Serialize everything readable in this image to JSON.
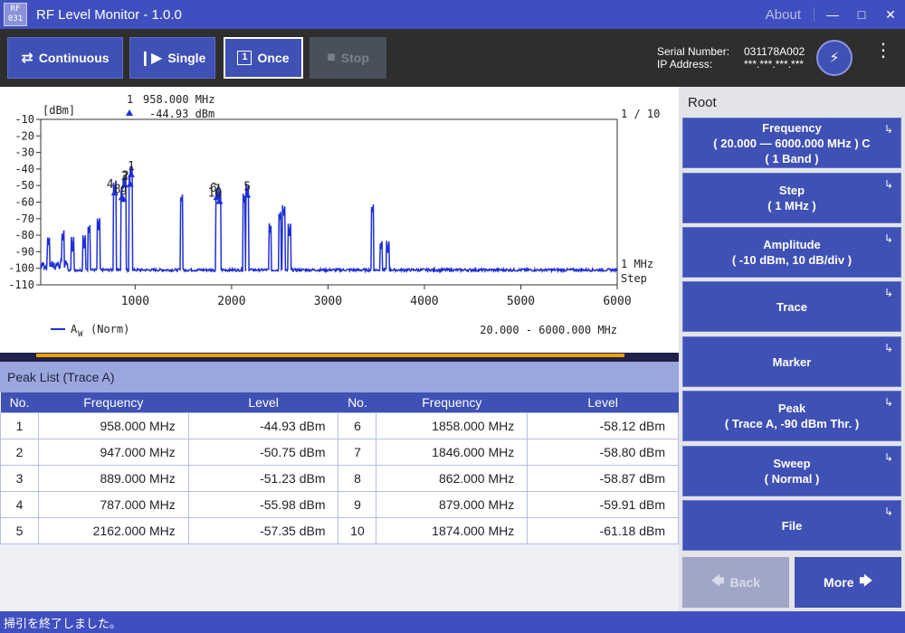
{
  "app": {
    "icon_line1": "RF",
    "icon_line2": "031",
    "title": "RF Level Monitor - 1.0.0",
    "about": "About"
  },
  "toolbar": {
    "continuous": "Continuous",
    "single": "Single",
    "once": "Once",
    "once_icon": "1",
    "stop": "Stop",
    "serial_label": "Serial Number:",
    "serial_value": "031178A002",
    "ip_label": "IP Address:",
    "ip_value": "***.***.***.***"
  },
  "chart": {
    "unit_label": "[dBm]",
    "marker_index": "1",
    "marker_freq": "958.000 MHz",
    "marker_level": "-44.93 dBm",
    "page": "1 / 10",
    "step_value": "1 MHz",
    "step_label": "Step",
    "legend": "(Norm)",
    "legend_sub": "W",
    "legend_main": "A",
    "range": "20.000 - 6000.000 MHz"
  },
  "chart_data": {
    "type": "line",
    "xlim": [
      20,
      6000
    ],
    "ylim": [
      -110,
      -10
    ],
    "xticks": [
      "1000",
      "2000",
      "3000",
      "4000",
      "5000",
      "6000"
    ],
    "yticks": [
      "-10",
      "-20",
      "-30",
      "-40",
      "-50",
      "-60",
      "-70",
      "-80",
      "-90",
      "-100",
      "-110"
    ],
    "series": [
      {
        "name": "A",
        "noise_floor": -101,
        "peaks": [
          {
            "f": 100,
            "level": -88
          },
          {
            "f": 250,
            "level": -85
          },
          {
            "f": 350,
            "level": -90
          },
          {
            "f": 470,
            "level": -88
          },
          {
            "f": 520,
            "level": -80
          },
          {
            "f": 620,
            "level": -78
          },
          {
            "f": 787,
            "level": -55.98
          },
          {
            "f": 862,
            "level": -58.87
          },
          {
            "f": 879,
            "level": -59.91
          },
          {
            "f": 889,
            "level": -51.23
          },
          {
            "f": 947,
            "level": -50.75
          },
          {
            "f": 958,
            "level": -44.93
          },
          {
            "f": 1480,
            "level": -62
          },
          {
            "f": 1846,
            "level": -58.8
          },
          {
            "f": 1858,
            "level": -58.12
          },
          {
            "f": 1874,
            "level": -61.18
          },
          {
            "f": 2130,
            "level": -62
          },
          {
            "f": 2162,
            "level": -57.35
          },
          {
            "f": 2400,
            "level": -80
          },
          {
            "f": 2500,
            "level": -72
          },
          {
            "f": 2540,
            "level": -70
          },
          {
            "f": 2600,
            "level": -82
          },
          {
            "f": 3460,
            "level": -68
          },
          {
            "f": 3550,
            "level": -90
          },
          {
            "f": 3620,
            "level": -92
          }
        ]
      }
    ],
    "markers": [
      {
        "label": "1",
        "f": 958,
        "level": -44.93
      },
      {
        "label": "2",
        "f": 947,
        "level": -50.75
      },
      {
        "label": "3",
        "f": 889,
        "level": -51.23
      },
      {
        "label": "4",
        "f": 787,
        "level": -55.98
      },
      {
        "label": "5",
        "f": 2162,
        "level": -57.35
      },
      {
        "label": "6",
        "f": 1858,
        "level": -58.12
      },
      {
        "label": "7",
        "f": 1846,
        "level": -58.8
      },
      {
        "label": "8",
        "f": 862,
        "level": -58.87
      },
      {
        "label": "9",
        "f": 879,
        "level": -59.91
      },
      {
        "label": "10",
        "f": 1874,
        "level": -61.18
      }
    ]
  },
  "peak_list": {
    "title": "Peak List (Trace A)",
    "headers": [
      "No.",
      "Frequency",
      "Level",
      "No.",
      "Frequency",
      "Level"
    ],
    "rows": [
      [
        "1",
        "958.000 MHz",
        "-44.93 dBm",
        "6",
        "1858.000 MHz",
        "-58.12 dBm"
      ],
      [
        "2",
        "947.000 MHz",
        "-50.75 dBm",
        "7",
        "1846.000 MHz",
        "-58.80 dBm"
      ],
      [
        "3",
        "889.000 MHz",
        "-51.23 dBm",
        "8",
        "862.000 MHz",
        "-58.87 dBm"
      ],
      [
        "4",
        "787.000 MHz",
        "-55.98 dBm",
        "9",
        "879.000 MHz",
        "-59.91 dBm"
      ],
      [
        "5",
        "2162.000 MHz",
        "-57.35 dBm",
        "10",
        "1874.000 MHz",
        "-61.18 dBm"
      ]
    ]
  },
  "menu": {
    "head": "Root",
    "items": [
      {
        "label": "Frequency",
        "sub": "( 20.000 — 6000.000 MHz ) C",
        "sub2": "( 1 Band )"
      },
      {
        "label": "Step",
        "sub": "( 1 MHz )",
        "sub2": ""
      },
      {
        "label": "Amplitude",
        "sub": "( -10 dBm, 10 dB/div )",
        "sub2": ""
      },
      {
        "label": "Trace",
        "sub": "",
        "sub2": ""
      },
      {
        "label": "Marker",
        "sub": "",
        "sub2": ""
      },
      {
        "label": "Peak",
        "sub": "( Trace A, -90 dBm Thr. )",
        "sub2": ""
      },
      {
        "label": "Sweep",
        "sub": "( Normal )",
        "sub2": ""
      },
      {
        "label": "File",
        "sub": "",
        "sub2": ""
      }
    ],
    "arrow": "↳",
    "back": "Back",
    "more": "More"
  },
  "status": "掃引を終了しました。",
  "colors": {
    "accent": "#3f51b5",
    "trace": "#1f2fd6",
    "titlebar": "#3f4fbf",
    "marker_strip": "#f0a000"
  }
}
